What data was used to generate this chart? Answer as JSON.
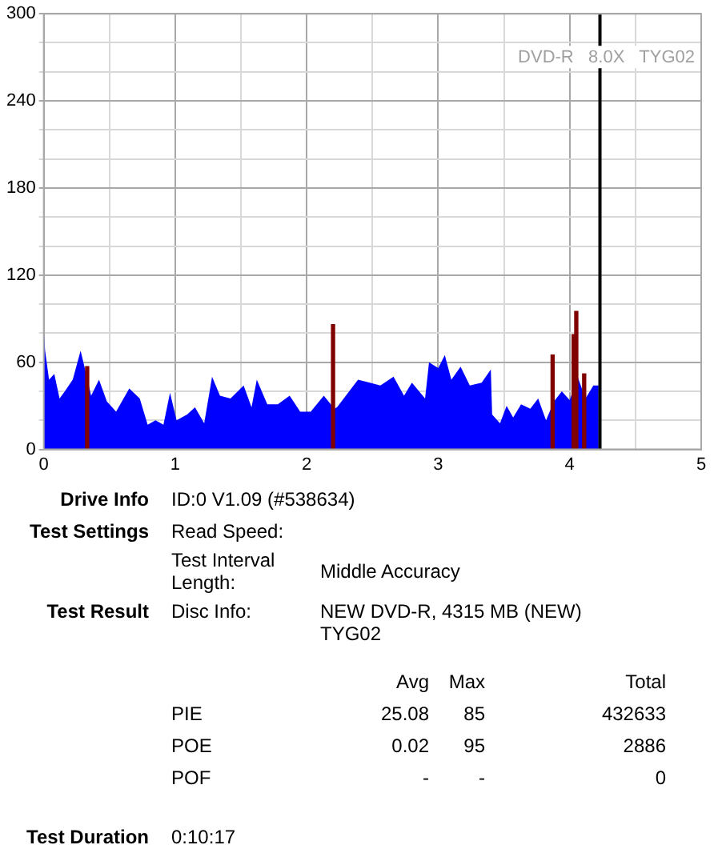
{
  "chart_data": {
    "type": "area",
    "subtitle": "DVD-R   8.0X   TYG02",
    "xlim": [
      0,
      5
    ],
    "xticks": [
      0,
      {
        "value": 0.5,
        "label": null
      },
      1,
      {
        "value": 1.5,
        "label": null
      },
      2,
      {
        "value": 2.5,
        "label": null
      },
      3,
      {
        "value": 3.5,
        "label": null
      },
      4,
      {
        "value": 4.5,
        "label": null
      },
      5
    ],
    "ylim": [
      0,
      300
    ],
    "yticks": [
      0,
      {
        "value": 20,
        "label": null
      },
      {
        "value": 40,
        "label": null
      },
      60,
      {
        "value": 80,
        "label": null
      },
      {
        "value": 100,
        "label": null
      },
      120,
      {
        "value": 140,
        "label": null
      },
      {
        "value": 160,
        "label": null
      },
      180,
      {
        "value": 200,
        "label": null
      },
      {
        "value": 220,
        "label": null
      },
      240,
      {
        "value": 260,
        "label": null
      },
      {
        "value": 280,
        "label": null
      },
      300
    ],
    "grid": true,
    "legend": false,
    "series": [
      {
        "color": "#0000ff",
        "x": [
          0,
          0.01,
          0.04,
          0.08,
          0.12,
          0.16,
          0.22,
          0.28,
          0.32,
          0.36,
          0.42,
          0.48,
          0.55,
          0.65,
          0.73,
          0.79,
          0.85,
          0.91,
          0.96,
          1.01,
          1.09,
          1.15,
          1.22,
          1.28,
          1.34,
          1.42,
          1.52,
          1.58,
          1.62,
          1.7,
          1.78,
          1.87,
          1.95,
          2.03,
          2.13,
          2.21,
          2.23,
          2.39,
          2.48,
          2.56,
          2.66,
          2.74,
          2.8,
          2.9,
          2.93,
          3.0,
          3.05,
          3.1,
          3.17,
          3.24,
          3.33,
          3.4,
          3.41,
          3.47,
          3.52,
          3.57,
          3.63,
          3.7,
          3.76,
          3.82,
          3.88,
          3.94,
          4.0,
          4.06,
          4.12,
          4.18,
          4.22
        ],
        "values": [
          82,
          68,
          48,
          52,
          35,
          40,
          48,
          68,
          53,
          37,
          48,
          33,
          26,
          42,
          35,
          17,
          20,
          17,
          39,
          20,
          24,
          29,
          18,
          50,
          37,
          35,
          44,
          29,
          48,
          31,
          31,
          37,
          26,
          26,
          37,
          28,
          29,
          48,
          46,
          44,
          50,
          37,
          46,
          35,
          60,
          56,
          65,
          48,
          57,
          44,
          46,
          55,
          24,
          18,
          30,
          22,
          31,
          28,
          35,
          20,
          33,
          40,
          34,
          50,
          35,
          44,
          44
        ]
      },
      {
        "type": "bar",
        "color": "#800000",
        "x": [
          0.33,
          2.2,
          3.87,
          4.03,
          4.05,
          4.11
        ],
        "values": [
          57,
          86,
          65,
          79,
          95,
          52
        ]
      }
    ],
    "ref_lines": [
      {
        "axis": "x",
        "value": 4.23,
        "color": "#000000"
      }
    ],
    "annotations": [
      "Drive Info",
      "ID:0 V1.09 (#538634)",
      "Test Settings",
      "Read Speed:",
      "Test Interval Length:",
      "Middle Accuracy",
      "Test Result",
      "Disc Info:",
      "NEW DVD-R, 4315 MB (NEW) TYG02",
      "Avg",
      "Max",
      "Total",
      "PIE",
      "25.08",
      "85",
      "432633",
      "POE",
      "0.02",
      "95",
      "2886",
      "POF",
      "-",
      "-",
      "0",
      "Test Duration",
      "0:10:17"
    ]
  }
}
